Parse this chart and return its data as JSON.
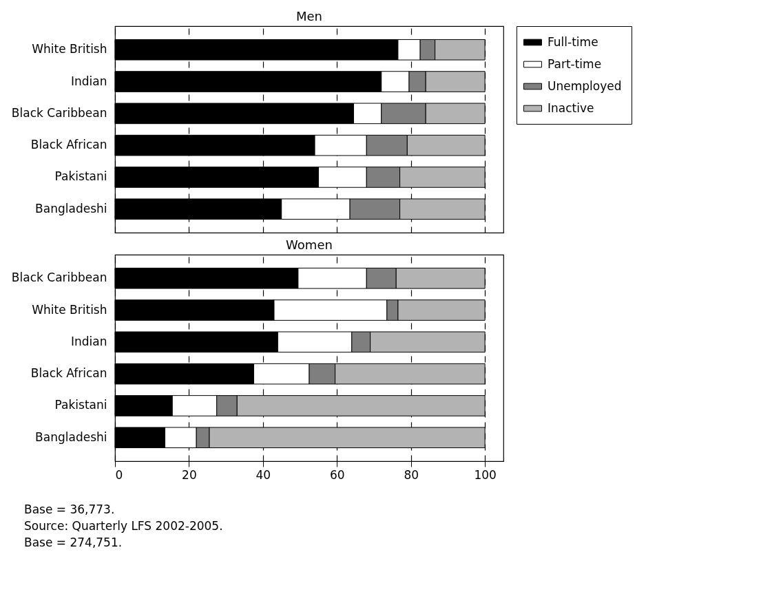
{
  "chart_data": [
    {
      "type": "bar",
      "orientation": "horizontal",
      "stacked": true,
      "title": "Men",
      "categories": [
        "White British",
        "Indian",
        "Black Caribbean",
        "Black African",
        "Pakistani",
        "Bangladeshi"
      ],
      "series": [
        {
          "name": "Full-time",
          "color": "#000000",
          "values": [
            76.5,
            72,
            64.5,
            54,
            55,
            45
          ]
        },
        {
          "name": "Part-time",
          "color": "#ffffff",
          "values": [
            6,
            7.5,
            7.5,
            14,
            13,
            18.5
          ]
        },
        {
          "name": "Unemployed",
          "color": "#7f7f7f",
          "values": [
            4,
            4.5,
            12,
            11,
            9,
            13.5
          ]
        },
        {
          "name": "Inactive",
          "color": "#b3b3b3",
          "values": [
            13.5,
            16,
            16,
            21,
            23,
            23
          ]
        }
      ],
      "xlim": [
        0,
        105
      ],
      "xticks": [
        0,
        20,
        40,
        60,
        80,
        100
      ],
      "grid": "x",
      "legend": "right",
      "tick_labels": "y"
    },
    {
      "type": "bar",
      "orientation": "horizontal",
      "stacked": true,
      "title": "Women",
      "categories": [
        "Black Caribbean",
        "White British",
        "Indian",
        "Black African",
        "Pakistani",
        "Bangladeshi"
      ],
      "series": [
        {
          "name": "Full-time",
          "color": "#000000",
          "values": [
            49.5,
            43,
            44,
            37.5,
            15.5,
            13.5
          ]
        },
        {
          "name": "Part-time",
          "color": "#ffffff",
          "values": [
            18.5,
            30.5,
            20,
            15,
            12,
            8.5
          ]
        },
        {
          "name": "Unemployed",
          "color": "#7f7f7f",
          "values": [
            8,
            3,
            5,
            7,
            5.5,
            3.5
          ]
        },
        {
          "name": "Inactive",
          "color": "#b3b3b3",
          "values": [
            24,
            23.5,
            31,
            40.5,
            67,
            74.5
          ]
        }
      ],
      "xlim": [
        0,
        105
      ],
      "xticks": [
        0,
        20,
        40,
        60,
        80,
        100
      ],
      "grid": "x",
      "legend": "right",
      "annotations": [
        "Base = 36,773.",
        "Source: Quarterly LFS 2002-2005.",
        "Base = 274,751."
      ]
    }
  ]
}
